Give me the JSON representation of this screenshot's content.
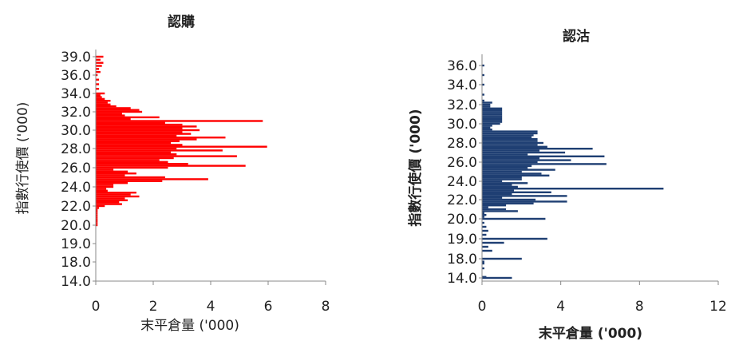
{
  "chart_data": [
    {
      "type": "bar",
      "orientation": "horizontal",
      "title": "認購",
      "xlabel": "末平倉量 ('000)",
      "ylabel": "指數行使價 ('000)",
      "xlim": [
        0,
        8
      ],
      "x_ticks": [
        "0",
        "2",
        "4",
        "6",
        "8"
      ],
      "ylim": [
        14.0,
        39.0
      ],
      "y_ticks": [
        "14.0",
        "18.0",
        "19.0",
        "20.0",
        "22.0",
        "24.0",
        "26.0",
        "28.0",
        "30.0",
        "32.0",
        "34.0",
        "36.0",
        "39.0"
      ],
      "color": "#ff0000",
      "grid": false,
      "strikes": [
        20.0,
        20.2,
        20.4,
        20.6,
        20.8,
        21.0,
        21.2,
        21.4,
        21.6,
        21.8,
        22.0,
        22.2,
        22.4,
        22.6,
        22.8,
        23.0,
        23.2,
        23.4,
        23.6,
        23.8,
        24.0,
        24.2,
        24.4,
        24.6,
        24.8,
        25.0,
        25.2,
        25.4,
        25.6,
        25.8,
        26.0,
        26.2,
        26.4,
        26.6,
        26.8,
        27.0,
        27.2,
        27.4,
        27.6,
        27.8,
        28.0,
        28.2,
        28.4,
        28.6,
        28.8,
        29.0,
        29.2,
        29.4,
        29.6,
        29.8,
        30.0,
        30.2,
        30.4,
        30.6,
        30.8,
        31.0,
        31.2,
        31.4,
        31.6,
        31.8,
        32.0,
        32.2,
        32.4,
        32.6,
        32.8,
        33.0,
        33.2,
        33.4,
        33.6,
        33.8,
        34.0,
        34.5,
        35.0,
        35.5,
        36.0,
        36.5,
        37.0,
        37.5,
        38.0,
        38.5,
        39.0
      ],
      "values": [
        0.05,
        0.05,
        0.05,
        0.05,
        0.05,
        0.05,
        0.05,
        0.05,
        0.05,
        0.1,
        0.3,
        0.9,
        0.8,
        1.1,
        1.0,
        1.5,
        1.2,
        1.4,
        0.4,
        0.35,
        0.6,
        0.6,
        1.1,
        2.3,
        3.9,
        2.4,
        1.0,
        1.4,
        1.1,
        0.6,
        2.5,
        5.2,
        3.2,
        2.5,
        2.2,
        2.7,
        4.9,
        2.8,
        2.6,
        4.4,
        2.8,
        5.95,
        3.0,
        2.6,
        2.9,
        3.5,
        4.5,
        2.8,
        3.3,
        3.0,
        3.6,
        3.0,
        3.5,
        3.0,
        2.4,
        5.8,
        1.2,
        2.2,
        1.0,
        0.9,
        1.6,
        1.5,
        1.2,
        0.7,
        0.5,
        0.4,
        0.5,
        0.3,
        0.2,
        0.15,
        0.3,
        0.1,
        0.1,
        0.1,
        0.05,
        0.15,
        0.1,
        0.2,
        0.25,
        0.15,
        0.25
      ]
    },
    {
      "type": "bar",
      "orientation": "horizontal",
      "title": "認沽",
      "xlabel": "末平倉量 ('000)",
      "ylabel": "指數行使價 ('000)",
      "xlim": [
        0,
        12
      ],
      "x_ticks": [
        "0",
        "4",
        "8",
        "12"
      ],
      "ylim": [
        14.0,
        36.0
      ],
      "y_ticks": [
        "14.0",
        "18.0",
        "19.0",
        "20.0",
        "22.0",
        "24.0",
        "26.0",
        "28.0",
        "30.0",
        "32.0",
        "34.0",
        "36.0"
      ],
      "color": "#1f3f73",
      "grid": false,
      "strikes": [
        14.0,
        14.2,
        16.0,
        17.0,
        17.2,
        17.4,
        18.0,
        18.4,
        18.6,
        18.8,
        19.0,
        19.2,
        19.4,
        19.6,
        19.8,
        20.0,
        20.2,
        20.4,
        20.6,
        20.8,
        21.0,
        21.2,
        21.4,
        21.6,
        21.8,
        22.0,
        22.2,
        22.4,
        22.6,
        22.8,
        23.0,
        23.2,
        23.4,
        23.6,
        23.8,
        24.0,
        24.2,
        24.4,
        24.6,
        24.8,
        25.0,
        25.2,
        25.4,
        25.6,
        25.8,
        26.0,
        26.2,
        26.4,
        26.6,
        26.8,
        27.0,
        27.2,
        27.4,
        27.6,
        27.8,
        28.0,
        28.2,
        28.4,
        28.6,
        28.8,
        29.0,
        29.2,
        29.4,
        29.6,
        29.8,
        30.0,
        30.2,
        30.4,
        30.6,
        30.8,
        31.0,
        31.2,
        31.4,
        31.6,
        31.8,
        32.0,
        32.2,
        32.4,
        33.0,
        34.0,
        35.0,
        36.0
      ],
      "values": [
        1.5,
        0.2,
        0.1,
        0.1,
        0.1,
        0.1,
        2.0,
        0.5,
        0.3,
        1.1,
        3.3,
        0.2,
        0.3,
        0.2,
        0.1,
        3.2,
        0.1,
        0.2,
        0.1,
        1.8,
        1.2,
        0.3,
        1.2,
        2.6,
        4.3,
        2.7,
        1.0,
        4.3,
        1.5,
        3.5,
        1.6,
        9.2,
        1.8,
        1.5,
        2.3,
        1.0,
        2.0,
        2.0,
        3.4,
        3.0,
        2.0,
        3.7,
        2.3,
        2.5,
        6.3,
        2.8,
        4.5,
        2.9,
        6.2,
        2.3,
        4.2,
        2.9,
        5.6,
        3.3,
        2.8,
        3.1,
        2.8,
        2.8,
        2.5,
        2.6,
        2.8,
        2.8,
        0.5,
        0.4,
        0.5,
        0.9,
        1.0,
        1.0,
        1.0,
        1.0,
        1.0,
        1.0,
        1.0,
        1.0,
        0.4,
        0.4,
        0.5,
        0.1,
        0.1,
        0.1,
        0.1,
        0.1
      ]
    }
  ]
}
